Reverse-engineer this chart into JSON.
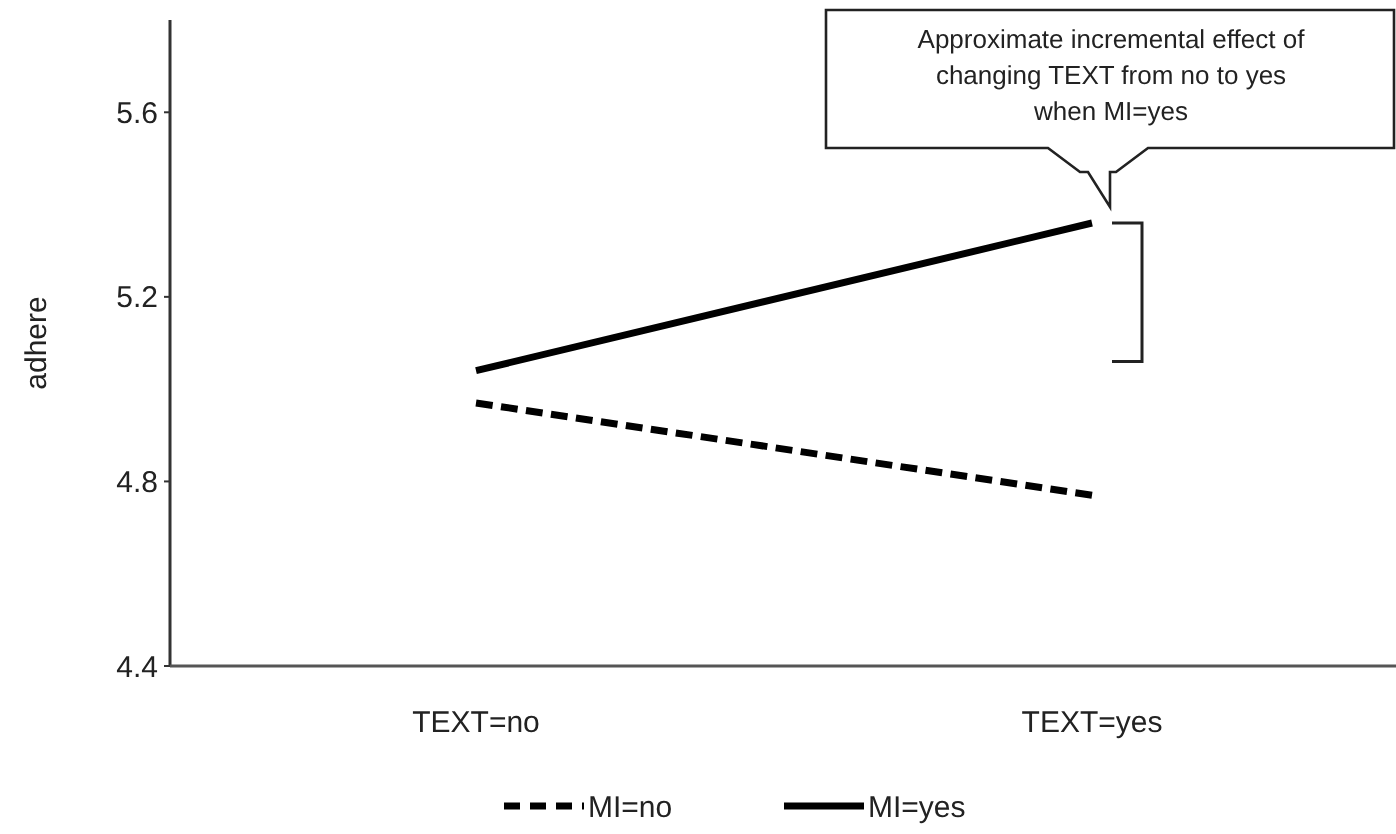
{
  "chart_data": {
    "type": "line",
    "ylabel": "adhere",
    "categories": [
      "TEXT=no",
      "TEXT=yes"
    ],
    "series": [
      {
        "name": "MI=no",
        "color": "#000000",
        "line_style": "dashed",
        "values": [
          4.97,
          4.77
        ]
      },
      {
        "name": "MI=yes",
        "color": "#000000",
        "line_style": "solid",
        "values": [
          5.04,
          5.36
        ]
      }
    ],
    "ylim": [
      4.4,
      5.8
    ],
    "yticks": [
      {
        "value": 4.4,
        "label": "4.4"
      },
      {
        "value": 4.8,
        "label": "4.8"
      },
      {
        "value": 5.2,
        "label": "5.2"
      },
      {
        "value": 5.6,
        "label": "5.6"
      }
    ],
    "legend": "bottom",
    "marker": "none",
    "annotations": [
      "Approximate incremental effect of\nchanging TEXT from no to yes\nwhen MI=yes"
    ]
  }
}
